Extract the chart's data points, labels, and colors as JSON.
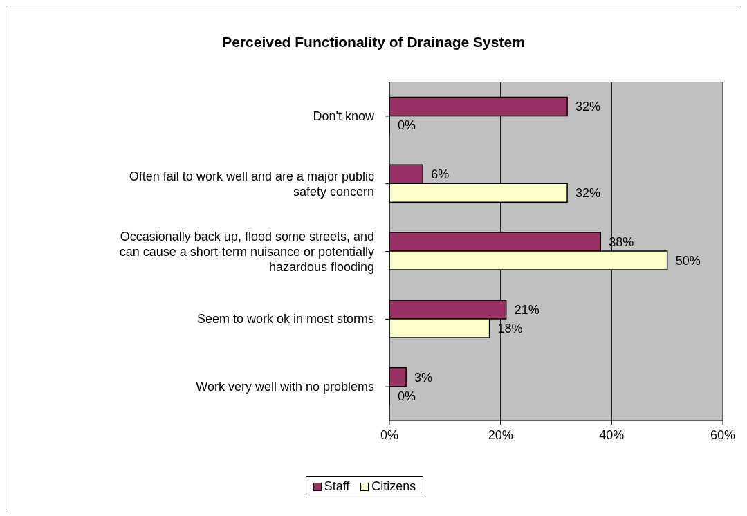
{
  "chart_data": {
    "type": "bar",
    "orientation": "horizontal",
    "title": "Perceived Functionality of Drainage System",
    "categories": [
      "Don't know",
      "Often fail to work well and are a major public safety concern",
      "Occasionally back up, flood some streets, and can cause a short-term nuisance or potentially hazardous flooding",
      "Seem to work ok in most storms",
      "Work very well with no problems"
    ],
    "series": [
      {
        "name": "Staff",
        "color": "#993366",
        "values": [
          32,
          6,
          38,
          21,
          3
        ],
        "value_labels": [
          "32%",
          "6%",
          "38%",
          "21%",
          "3%"
        ]
      },
      {
        "name": "Citizens",
        "color": "#ffffcc",
        "values": [
          0,
          32,
          50,
          18,
          0
        ],
        "value_labels": [
          "0%",
          "32%",
          "50%",
          "18%",
          "0%"
        ]
      }
    ],
    "xlim": [
      0,
      60
    ],
    "xticks": [
      {
        "value": 0,
        "label": "0%"
      },
      {
        "value": 20,
        "label": "20%"
      },
      {
        "value": 40,
        "label": "40%"
      },
      {
        "value": 60,
        "label": "60%"
      }
    ],
    "grid": "x",
    "legend": "bottom"
  }
}
